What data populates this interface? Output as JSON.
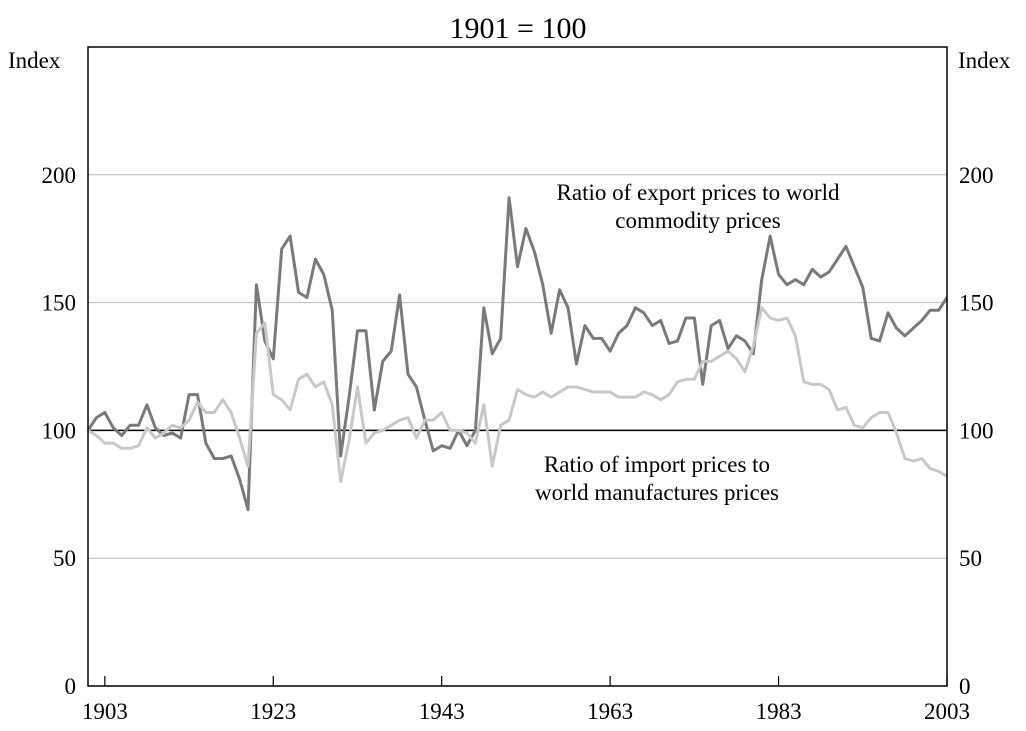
{
  "chart_data": {
    "type": "line",
    "title": "1901 = 100",
    "ylabel": "Index",
    "y2label": "Index",
    "x": [
      1901,
      1902,
      1903,
      1904,
      1905,
      1906,
      1907,
      1908,
      1909,
      1910,
      1911,
      1912,
      1913,
      1914,
      1915,
      1916,
      1917,
      1918,
      1919,
      1920,
      1921,
      1922,
      1923,
      1924,
      1925,
      1926,
      1927,
      1928,
      1929,
      1930,
      1931,
      1932,
      1933,
      1934,
      1935,
      1936,
      1937,
      1938,
      1939,
      1940,
      1941,
      1942,
      1943,
      1944,
      1945,
      1946,
      1947,
      1948,
      1949,
      1950,
      1951,
      1952,
      1953,
      1954,
      1955,
      1956,
      1957,
      1958,
      1959,
      1960,
      1961,
      1962,
      1963,
      1964,
      1965,
      1966,
      1967,
      1968,
      1969,
      1970,
      1971,
      1972,
      1973,
      1974,
      1975,
      1976,
      1977,
      1978,
      1979,
      1980,
      1981,
      1982,
      1983,
      1984,
      1985,
      1986,
      1987,
      1988,
      1989,
      1990,
      1991,
      1992,
      1993,
      1994,
      1995,
      1996,
      1997,
      1998,
      1999,
      2000,
      2001,
      2002,
      2003
    ],
    "series": [
      {
        "name": "Ratio of export prices to world commodity prices",
        "color": "#7a7a7a",
        "values": [
          100,
          105,
          107,
          101,
          98,
          102,
          102,
          110,
          101,
          98,
          99,
          97,
          114,
          114,
          95,
          89,
          89,
          90,
          81,
          69,
          157,
          135,
          128,
          171,
          176,
          154,
          152,
          167,
          161,
          147,
          90,
          113,
          139,
          139,
          108,
          127,
          131,
          153,
          122,
          117,
          104,
          92,
          94,
          93,
          100,
          94,
          100,
          148,
          130,
          136,
          191,
          164,
          179,
          170,
          157,
          138,
          155,
          148,
          126,
          141,
          136,
          136,
          131,
          138,
          141,
          148,
          146,
          141,
          143,
          134,
          135,
          144,
          144,
          118,
          141,
          143,
          132,
          137,
          135,
          130,
          159,
          176,
          161,
          157,
          159,
          157,
          163,
          160,
          162,
          167,
          172,
          164,
          156,
          136,
          135,
          146,
          140,
          137,
          140,
          143,
          147,
          147,
          152
        ]
      },
      {
        "name": "Ratio of import prices to world manufactures prices",
        "color": "#c8c8c8",
        "values": [
          100,
          98,
          95,
          95,
          93,
          93,
          94,
          101,
          97,
          99,
          102,
          101,
          104,
          111,
          107,
          107,
          112,
          107,
          97,
          86,
          138,
          142,
          114,
          112,
          108,
          120,
          122,
          117,
          119,
          110,
          80,
          96,
          117,
          95,
          99,
          100,
          102,
          104,
          105,
          97,
          104,
          104,
          107,
          100,
          100,
          99,
          95,
          110,
          86,
          102,
          104,
          116,
          114,
          113,
          115,
          113,
          115,
          117,
          117,
          116,
          115,
          115,
          115,
          113,
          113,
          113,
          115,
          114,
          112,
          114,
          119,
          120,
          120,
          127,
          127,
          129,
          131,
          128,
          123,
          133,
          148,
          144,
          143,
          144,
          137,
          119,
          118,
          118,
          116,
          108,
          109,
          102,
          101,
          105,
          107,
          107,
          99,
          89,
          88,
          89,
          85,
          84,
          82
        ]
      }
    ],
    "annotations": [
      {
        "lines": [
          "Ratio of export prices to world",
          "commodity prices"
        ]
      },
      {
        "lines": [
          "Ratio of import prices to",
          "world manufactures prices"
        ]
      }
    ],
    "reference_line": 100,
    "xlim": [
      1901,
      2003
    ],
    "xticks": [
      1903,
      1923,
      1943,
      1963,
      1983,
      2003
    ],
    "ylim": [
      0,
      250
    ],
    "yticks": [
      0,
      50,
      100,
      150,
      200
    ],
    "y2lim": [
      0,
      250
    ],
    "y2ticks": [
      0,
      50,
      100,
      150,
      200
    ],
    "grid": true
  }
}
